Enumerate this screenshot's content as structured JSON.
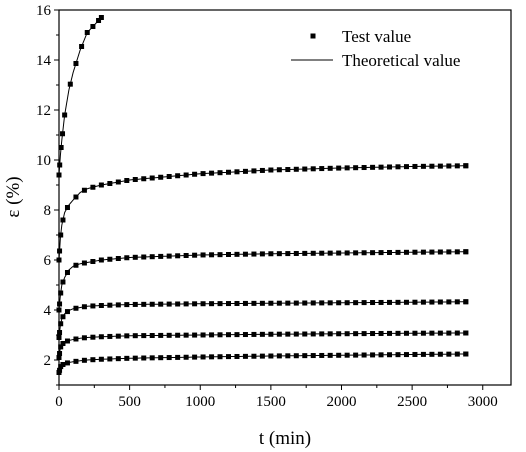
{
  "chart_data": {
    "type": "scatter",
    "title": "",
    "xlabel": "t (min)",
    "ylabel": "ε (%)",
    "xlim": [
      0,
      3200
    ],
    "ylim": [
      1,
      16
    ],
    "x_ticks": [
      "0",
      "500",
      "1000",
      "1500",
      "2000",
      "2500",
      "3000"
    ],
    "y_ticks": [
      "2",
      "4",
      "6",
      "8",
      "10",
      "12",
      "14",
      "16"
    ],
    "grid": false,
    "legend_position": "top-right",
    "legend": {
      "markers_label": "Test value",
      "line_label": "Theoretical value"
    },
    "colors": {
      "marker": "#000000",
      "line": "#000000"
    },
    "series": [
      {
        "x": [
          0,
          10,
          20,
          40,
          70,
          100,
          150,
          200,
          250,
          300
        ],
        "y": [
          9.4,
          10.2,
          10.8,
          11.8,
          12.8,
          13.5,
          14.4,
          15.1,
          15.4,
          15.7
        ]
      },
      {
        "x": [
          0,
          10,
          20,
          40,
          70,
          100,
          150,
          200,
          300,
          500,
          1000,
          1500,
          2000,
          2500,
          2880
        ],
        "y": [
          6.0,
          6.9,
          7.4,
          7.9,
          8.2,
          8.4,
          8.7,
          8.85,
          9.0,
          9.2,
          9.45,
          9.6,
          9.68,
          9.74,
          9.77
        ]
      },
      {
        "x": [
          0,
          10,
          20,
          40,
          70,
          100,
          150,
          200,
          300,
          500,
          1000,
          1500,
          2000,
          2500,
          2880
        ],
        "y": [
          4.0,
          4.6,
          5.0,
          5.3,
          5.6,
          5.75,
          5.85,
          5.9,
          6.0,
          6.1,
          6.2,
          6.25,
          6.28,
          6.31,
          6.33
        ]
      },
      {
        "x": [
          0,
          10,
          20,
          40,
          70,
          100,
          150,
          200,
          300,
          500,
          1000,
          1500,
          2000,
          2500,
          2880
        ],
        "y": [
          2.9,
          3.4,
          3.65,
          3.85,
          3.98,
          4.05,
          4.1,
          4.15,
          4.18,
          4.22,
          4.25,
          4.27,
          4.29,
          4.31,
          4.33
        ]
      },
      {
        "x": [
          0,
          10,
          20,
          40,
          70,
          100,
          150,
          200,
          300,
          500,
          1000,
          1500,
          2000,
          2500,
          2880
        ],
        "y": [
          2.1,
          2.5,
          2.62,
          2.72,
          2.78,
          2.82,
          2.87,
          2.9,
          2.93,
          2.97,
          3.0,
          3.03,
          3.05,
          3.07,
          3.08
        ]
      },
      {
        "x": [
          0,
          10,
          20,
          40,
          70,
          100,
          150,
          200,
          300,
          500,
          1000,
          1500,
          2000,
          2500,
          2880
        ],
        "y": [
          1.5,
          1.72,
          1.8,
          1.85,
          1.9,
          1.93,
          1.97,
          2.0,
          2.03,
          2.07,
          2.12,
          2.16,
          2.19,
          2.22,
          2.24
        ]
      }
    ]
  }
}
